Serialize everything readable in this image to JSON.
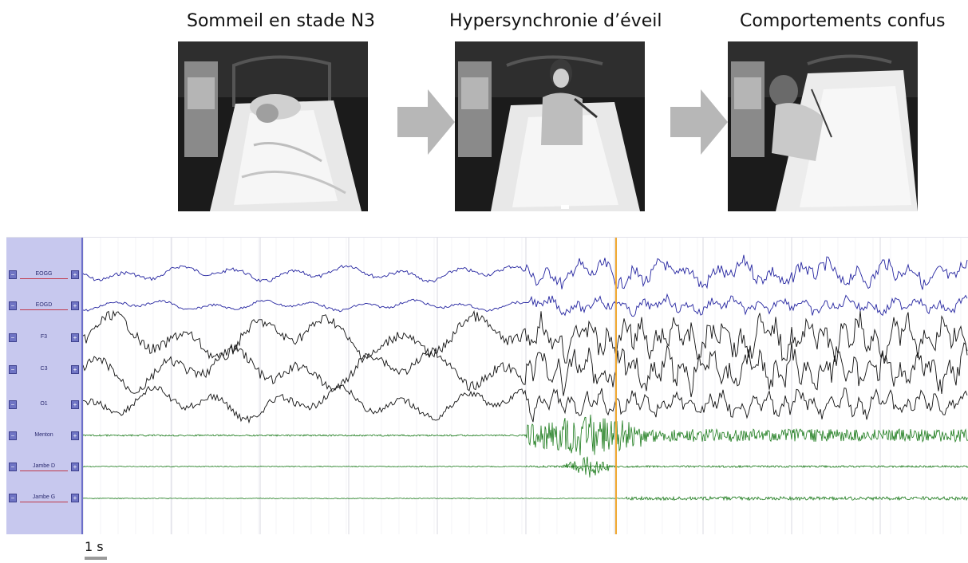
{
  "stages": [
    {
      "caption": "Sommeil en stade N3"
    },
    {
      "caption": "Hypersynchronie d’éveil"
    },
    {
      "caption": "Comportements confus"
    }
  ],
  "channels": [
    {
      "label": "EOGG",
      "color": "#2424a0"
    },
    {
      "label": "EOGD",
      "color": "#2424a0"
    },
    {
      "label": "F3",
      "color": "#111111"
    },
    {
      "label": "C3",
      "color": "#111111"
    },
    {
      "label": "O1",
      "color": "#111111"
    },
    {
      "label": "Menton",
      "color": "#1a7a1a"
    },
    {
      "label": "Jambe D",
      "color": "#1a7a1a"
    },
    {
      "label": "Jambe G",
      "color": "#1a7a1a"
    }
  ],
  "scale": {
    "label": "1 s"
  },
  "colors": {
    "panel": "#c7c8ee",
    "marker": "#f0a830",
    "grid": "#d9d9e2"
  }
}
